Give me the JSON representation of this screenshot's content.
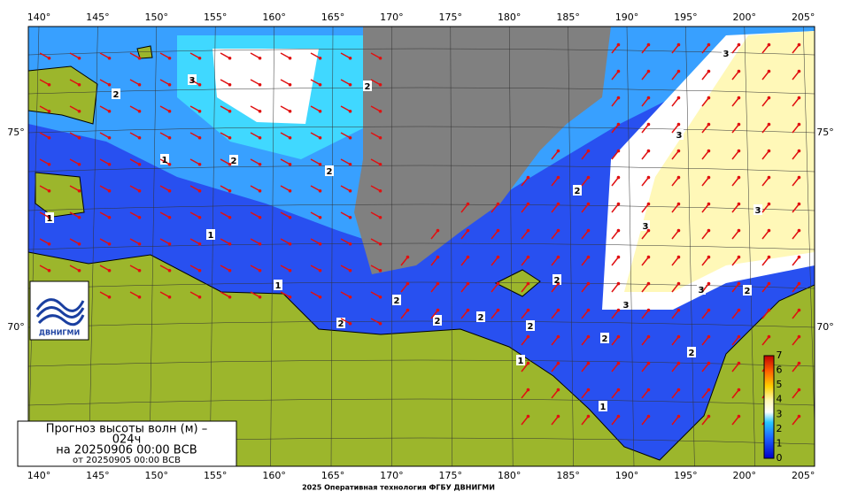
{
  "map": {
    "lon_labels": [
      "140°",
      "145°",
      "150°",
      "155°",
      "160°",
      "165°",
      "170°",
      "175°",
      "180°",
      "185°",
      "190°",
      "195°",
      "200°",
      "205°"
    ],
    "lat_labels": [
      "75°",
      "70°"
    ],
    "title_lines": [
      "Прогноз высоты волн (м) –",
      "024ч",
      "на 20250906 00:00 ВСВ",
      "от 20250905 00:00 ВСВ"
    ],
    "logo": "ДВНИГМИ",
    "colorbar_ticks": [
      "0",
      "1",
      "2",
      "3",
      "4",
      "5",
      "6",
      "7"
    ],
    "contour_labels": [
      "2",
      "3",
      "2",
      "1",
      "2",
      "2",
      "1",
      "1",
      "1",
      "2",
      "2",
      "2",
      "2",
      "2",
      "2",
      "2",
      "3",
      "3",
      "3",
      "3",
      "3",
      "2",
      "2",
      "2",
      "1",
      "1",
      "3"
    ],
    "footer": "2025 Оперативная технология ФГБУ ДВНИГМИ"
  }
}
